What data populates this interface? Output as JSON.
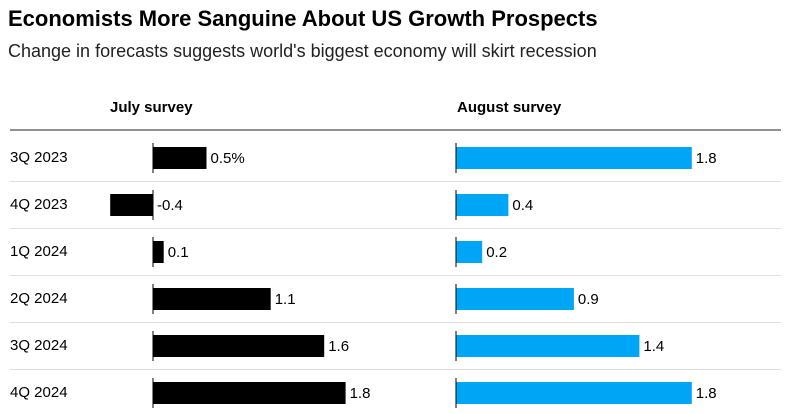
{
  "chart_data": {
    "type": "bar",
    "title": "Economists More Sanguine About US Growth Prospects",
    "subtitle": "Change in forecasts suggests world's biggest economy will skirt recession",
    "categories": [
      "3Q 2023",
      "4Q 2023",
      "1Q 2024",
      "2Q 2024",
      "3Q 2024",
      "4Q 2024"
    ],
    "series": [
      {
        "name": "July survey",
        "color": "#000000",
        "values": [
          0.5,
          -0.4,
          0.1,
          1.1,
          1.6,
          1.8
        ],
        "value_labels": [
          "0.5%",
          "-0.4",
          "0.1",
          "1.1",
          "1.6",
          "1.8"
        ]
      },
      {
        "name": "August survey",
        "color": "#00a6f6",
        "values": [
          1.8,
          0.4,
          0.2,
          0.9,
          1.4,
          1.8
        ]
      }
    ]
  }
}
